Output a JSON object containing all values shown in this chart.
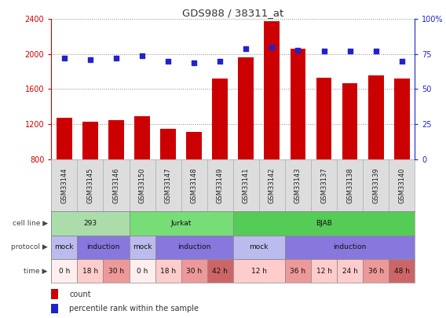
{
  "title": "GDS988 / 38311_at",
  "samples": [
    "GSM33144",
    "GSM33145",
    "GSM33146",
    "GSM33150",
    "GSM33147",
    "GSM33148",
    "GSM33149",
    "GSM33141",
    "GSM33142",
    "GSM33143",
    "GSM33137",
    "GSM33138",
    "GSM33139",
    "GSM33140"
  ],
  "counts": [
    1270,
    1230,
    1240,
    1290,
    1150,
    1110,
    1720,
    1960,
    2380,
    2060,
    1730,
    1670,
    1760,
    1720
  ],
  "percentile": [
    72,
    71,
    72,
    74,
    70,
    69,
    70,
    79,
    80,
    78,
    77,
    77,
    77,
    70
  ],
  "ylim_left": [
    800,
    2400
  ],
  "ylim_right": [
    0,
    100
  ],
  "yticks_left": [
    800,
    1200,
    1600,
    2000,
    2400
  ],
  "yticks_right": [
    0,
    25,
    50,
    75,
    100
  ],
  "bar_color": "#cc0000",
  "dot_color": "#2222cc",
  "cell_line_data": [
    {
      "label": "293",
      "start": 0,
      "end": 3,
      "color": "#aaddaa"
    },
    {
      "label": "Jurkat",
      "start": 3,
      "end": 7,
      "color": "#77dd77"
    },
    {
      "label": "BJAB",
      "start": 7,
      "end": 14,
      "color": "#55cc55"
    }
  ],
  "protocol_data": [
    {
      "label": "mock",
      "start": 0,
      "end": 1,
      "color": "#bbbbee"
    },
    {
      "label": "induction",
      "start": 1,
      "end": 3,
      "color": "#8877dd"
    },
    {
      "label": "mock",
      "start": 3,
      "end": 4,
      "color": "#bbbbee"
    },
    {
      "label": "induction",
      "start": 4,
      "end": 7,
      "color": "#8877dd"
    },
    {
      "label": "mock",
      "start": 7,
      "end": 9,
      "color": "#bbbbee"
    },
    {
      "label": "induction",
      "start": 9,
      "end": 14,
      "color": "#8877dd"
    }
  ],
  "time_data": [
    {
      "label": "0 h",
      "start": 0,
      "end": 1,
      "color": "#ffeeee"
    },
    {
      "label": "18 h",
      "start": 1,
      "end": 2,
      "color": "#ffcccc"
    },
    {
      "label": "30 h",
      "start": 2,
      "end": 3,
      "color": "#ee9999"
    },
    {
      "label": "0 h",
      "start": 3,
      "end": 4,
      "color": "#ffeeee"
    },
    {
      "label": "18 h",
      "start": 4,
      "end": 5,
      "color": "#ffcccc"
    },
    {
      "label": "30 h",
      "start": 5,
      "end": 6,
      "color": "#ee9999"
    },
    {
      "label": "42 h",
      "start": 6,
      "end": 7,
      "color": "#cc6666"
    },
    {
      "label": "12 h",
      "start": 7,
      "end": 9,
      "color": "#ffcccc"
    },
    {
      "label": "36 h",
      "start": 9,
      "end": 10,
      "color": "#ee9999"
    },
    {
      "label": "12 h",
      "start": 10,
      "end": 11,
      "color": "#ffcccc"
    },
    {
      "label": "24 h",
      "start": 11,
      "end": 12,
      "color": "#ffcccc"
    },
    {
      "label": "36 h",
      "start": 12,
      "end": 13,
      "color": "#ee9999"
    },
    {
      "label": "48 h",
      "start": 13,
      "end": 14,
      "color": "#cc6666"
    }
  ],
  "grid_color": "#888888",
  "bg_color": "#ffffff",
  "label_color_left": "#cc0000",
  "label_color_right": "#2222cc",
  "xticklabel_bg": "#dddddd",
  "row_labels": [
    "cell line",
    "protocol",
    "time"
  ],
  "legend_items": [
    {
      "label": "count",
      "color": "#cc0000"
    },
    {
      "label": "percentile rank within the sample",
      "color": "#2222cc"
    }
  ]
}
